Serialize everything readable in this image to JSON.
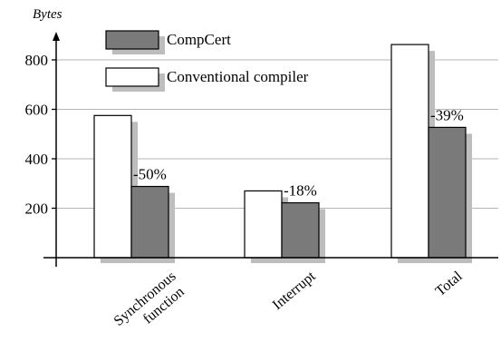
{
  "chart_data": {
    "type": "bar",
    "ylabel": "Bytes",
    "xlabel": "",
    "title": "",
    "ylim": [
      0,
      870
    ],
    "yticks": [
      200,
      400,
      600,
      800
    ],
    "categories": [
      "Synchronous\nfunction",
      "Interrupt",
      "Total"
    ],
    "series": [
      {
        "name": "Conventional compiler",
        "values": [
          575,
          270,
          862
        ],
        "color": "#ffffff"
      },
      {
        "name": "CompCert",
        "values": [
          288,
          222,
          527
        ],
        "color": "#7a7a7a"
      }
    ],
    "annotations": [
      "-50%",
      "-18%",
      "-39%"
    ],
    "legend_position": "top-left",
    "grid": true,
    "shadow_color": "#bdbdbd"
  }
}
